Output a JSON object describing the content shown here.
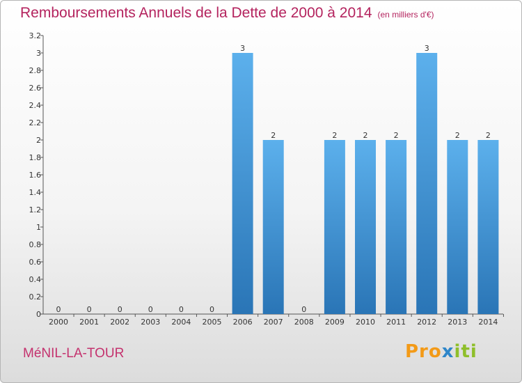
{
  "chart_data": {
    "type": "bar",
    "title": "Remboursements Annuels de la Dette de 2000 à 2014",
    "unit": "(en milliers d'€)",
    "categories": [
      "2000",
      "2001",
      "2002",
      "2003",
      "2004",
      "2005",
      "2006",
      "2007",
      "2008",
      "2009",
      "2010",
      "2011",
      "2012",
      "2013",
      "2014"
    ],
    "values": [
      0,
      0,
      0,
      0,
      0,
      0,
      3,
      2,
      0,
      2,
      2,
      2,
      3,
      2,
      2
    ],
    "value_labels": [
      "0",
      "0",
      "0",
      "0",
      "0",
      "0",
      "3",
      "2",
      "0",
      "2",
      "2",
      "2",
      "3",
      "2",
      "2"
    ],
    "ylim": [
      0,
      3.2
    ],
    "yticks": [
      "0",
      "0.2",
      "0.4",
      "0.6",
      "0.8",
      "1",
      "1.2",
      "1.4",
      "1.6",
      "1.8",
      "2",
      "2.2",
      "2.4",
      "2.6",
      "2.8",
      "3",
      "3.2"
    ],
    "grid": false,
    "bar_color": "#3d8fd6"
  },
  "footer": {
    "town": "MéNIL-LA-TOUR",
    "logo_part1": "Pro",
    "logo_part2": "x",
    "logo_part3": "iti"
  }
}
